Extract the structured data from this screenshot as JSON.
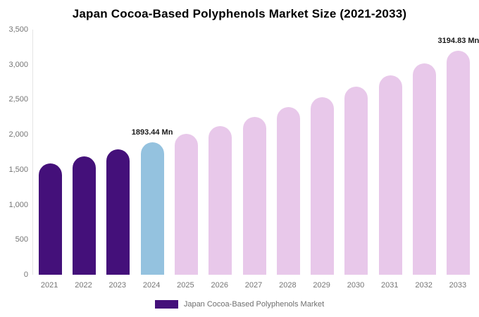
{
  "title": "Japan Cocoa-Based Polyphenols Market Size (2021-2033)",
  "y_axis": {
    "ticks": [
      "3,500",
      "3,000",
      "2,500",
      "2,000",
      "1,500",
      "1,000",
      "500",
      "0"
    ]
  },
  "legend": {
    "label": "Japan Cocoa-Based Polyphenols Market",
    "swatch_color": "#44107A"
  },
  "colors": {
    "historical": "#44107A",
    "current": "#94C2DF",
    "forecast": "#E8C8EA"
  },
  "chart_data": {
    "type": "bar",
    "title": "Japan Cocoa-Based Polyphenols Market Size (2021-2033)",
    "xlabel": "",
    "ylabel": "",
    "ylim": [
      0,
      3500
    ],
    "grid": false,
    "legend_position": "bottom",
    "unit": "Mn",
    "categories": [
      "2021",
      "2022",
      "2023",
      "2024",
      "2025",
      "2026",
      "2027",
      "2028",
      "2029",
      "2030",
      "2031",
      "2032",
      "2033"
    ],
    "values": [
      1590,
      1686,
      1787,
      1893.44,
      2007,
      2127,
      2256,
      2391,
      2535,
      2687,
      2848,
      3019,
      3194.83
    ],
    "bar_colors": [
      "#44107A",
      "#44107A",
      "#44107A",
      "#94C2DF",
      "#E8C8EA",
      "#E8C8EA",
      "#E8C8EA",
      "#E8C8EA",
      "#E8C8EA",
      "#E8C8EA",
      "#E8C8EA",
      "#E8C8EA",
      "#E8C8EA"
    ],
    "data_labels": [
      "",
      "",
      "",
      "1893.44 Mn",
      "",
      "",
      "",
      "",
      "",
      "",
      "",
      "",
      "3194.83 Mn"
    ],
    "series_name": "Japan Cocoa-Based Polyphenols Market"
  }
}
